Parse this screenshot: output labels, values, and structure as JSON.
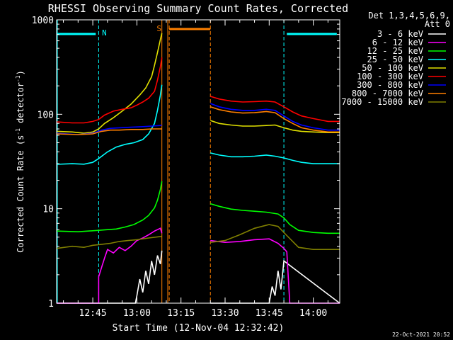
{
  "chart_data": {
    "type": "line",
    "title": "RHESSI Observing Summary Count Rates, Corrected",
    "xlabel": "Start Time (12-Nov-04 12:32:42)",
    "ylabel": "Corrected Count Rate (s⁻¹ detector⁻¹)",
    "ylabel_main": "Corrected Count Rate (s",
    "ylabel_sup1": "-1",
    "ylabel_mid": " detector",
    "ylabel_sup2": "-1",
    "ylabel_end": ")",
    "y_scale": "log",
    "ylim": [
      1,
      1000
    ],
    "xlim": [
      "12:32:42",
      "14:09:00"
    ],
    "x_ticks": [
      "12:45",
      "13:00",
      "13:15",
      "13:30",
      "13:45",
      "14:00"
    ],
    "y_ticks": [
      "1",
      "10",
      "100",
      "1000"
    ],
    "legend_header": [
      "Det 1,3,4,5,6,9,",
      "Att 0"
    ],
    "legend_placement": "right",
    "series": [
      {
        "name": "3 - 6 keV",
        "color": "#ffffff",
        "segments": [
          [
            [
              "12:32:42",
              1
            ],
            [
              "12:59:30",
              1
            ],
            [
              "13:00",
              1.2
            ],
            [
              "13:01",
              1.8
            ],
            [
              "13:02",
              1.3
            ],
            [
              "13:03",
              2.2
            ],
            [
              "13:04",
              1.6
            ],
            [
              "13:05",
              2.8
            ],
            [
              "13:06",
              2.0
            ],
            [
              "13:07",
              3.2
            ],
            [
              "13:08",
              2.6
            ],
            [
              "13:08:30",
              3.6
            ]
          ],
          [
            [
              "13:25",
              1
            ],
            [
              "13:45",
              1
            ],
            [
              "13:46",
              1.5
            ],
            [
              "13:47",
              1.2
            ],
            [
              "13:48",
              2.2
            ],
            [
              "13:49",
              1.4
            ],
            [
              "13:50",
              2.8
            ],
            [
              "14:09",
              1
            ]
          ]
        ]
      },
      {
        "name": "6 - 12 keV",
        "color": "#ff00ff",
        "segments": [
          [
            [
              "12:32:42",
              1
            ],
            [
              "12:47",
              1
            ],
            [
              "12:47",
              1.9
            ],
            [
              "12:48",
              2.4
            ],
            [
              "12:49",
              3.0
            ],
            [
              "12:50",
              3.7
            ],
            [
              "12:52",
              3.4
            ],
            [
              "12:54",
              3.9
            ],
            [
              "12:56",
              3.6
            ],
            [
              "12:58",
              4.0
            ],
            [
              "13:00",
              4.6
            ],
            [
              "13:02",
              4.9
            ],
            [
              "13:04",
              5.3
            ],
            [
              "13:06",
              5.8
            ],
            [
              "13:08",
              6.2
            ],
            [
              "13:08:30",
              5.5
            ]
          ],
          [
            [
              "13:25",
              4.6
            ],
            [
              "13:30",
              4.4
            ],
            [
              "13:35",
              4.5
            ],
            [
              "13:40",
              4.7
            ],
            [
              "13:45",
              4.8
            ],
            [
              "13:48",
              4.3
            ],
            [
              "13:50",
              3.8
            ],
            [
              "13:51",
              3.5
            ],
            [
              "13:52",
              1
            ],
            [
              "14:09",
              1
            ]
          ]
        ]
      },
      {
        "name": "12 - 25 keV",
        "color": "#00ff00",
        "segments": [
          [
            [
              "12:32:42",
              5.8
            ],
            [
              "12:40",
              5.7
            ],
            [
              "12:47",
              5.9
            ],
            [
              "12:50",
              6.0
            ],
            [
              "12:53",
              6.1
            ],
            [
              "12:56",
              6.4
            ],
            [
              "12:59",
              6.8
            ],
            [
              "13:02",
              7.6
            ],
            [
              "13:04",
              8.5
            ],
            [
              "13:06",
              10.2
            ],
            [
              "13:07",
              12.3
            ],
            [
              "13:08",
              16.0
            ],
            [
              "13:08:30",
              19.5
            ]
          ],
          [
            [
              "13:25",
              11.3
            ],
            [
              "13:28",
              10.6
            ],
            [
              "13:32",
              9.9
            ],
            [
              "13:36",
              9.6
            ],
            [
              "13:40",
              9.4
            ],
            [
              "13:44",
              9.2
            ],
            [
              "13:48",
              8.8
            ],
            [
              "13:50",
              8.0
            ],
            [
              "13:52",
              6.8
            ],
            [
              "13:55",
              5.9
            ],
            [
              "14:00",
              5.6
            ],
            [
              "14:05",
              5.5
            ],
            [
              "14:09",
              5.5
            ]
          ]
        ]
      },
      {
        "name": "25 - 50 keV",
        "color": "#00ffff",
        "segments": [
          [
            [
              "12:32:42",
              29.5
            ],
            [
              "12:38",
              30
            ],
            [
              "12:42",
              29.6
            ],
            [
              "12:45",
              31
            ],
            [
              "12:47",
              34
            ],
            [
              "12:50",
              40
            ],
            [
              "12:53",
              45
            ],
            [
              "12:56",
              48
            ],
            [
              "12:59",
              50
            ],
            [
              "13:02",
              54
            ],
            [
              "13:04",
              62
            ],
            [
              "13:06",
              80
            ],
            [
              "13:07",
              110
            ],
            [
              "13:08",
              160
            ],
            [
              "13:08:30",
              205
            ]
          ],
          [
            [
              "13:25",
              39
            ],
            [
              "13:28",
              37
            ],
            [
              "13:32",
              35.5
            ],
            [
              "13:36",
              35.5
            ],
            [
              "13:40",
              36
            ],
            [
              "13:44",
              37
            ],
            [
              "13:47",
              36
            ],
            [
              "13:50",
              34.5
            ],
            [
              "13:53",
              32.5
            ],
            [
              "13:56",
              31
            ],
            [
              "14:00",
              30
            ],
            [
              "14:05",
              30
            ],
            [
              "14:09",
              30
            ]
          ]
        ]
      },
      {
        "name": "50 - 100 keV",
        "color": "#e0e000",
        "segments": [
          [
            [
              "12:32:42",
              66
            ],
            [
              "12:38",
              65
            ],
            [
              "12:42",
              63
            ],
            [
              "12:45",
              65
            ],
            [
              "12:47",
              70
            ],
            [
              "12:49",
              80
            ],
            [
              "12:52",
              92
            ],
            [
              "12:55",
              108
            ],
            [
              "12:58",
              128
            ],
            [
              "13:01",
              160
            ],
            [
              "13:03",
              190
            ],
            [
              "13:05",
              250
            ],
            [
              "13:06",
              330
            ],
            [
              "13:07",
              450
            ],
            [
              "13:08",
              620
            ],
            [
              "13:08:30",
              720
            ]
          ],
          [
            [
              "13:25",
              86
            ],
            [
              "13:28",
              80
            ],
            [
              "13:32",
              77
            ],
            [
              "13:36",
              75
            ],
            [
              "13:40",
              75
            ],
            [
              "13:44",
              76
            ],
            [
              "13:47",
              77
            ],
            [
              "13:50",
              72
            ],
            [
              "13:53",
              68
            ],
            [
              "13:56",
              66
            ],
            [
              "14:00",
              65
            ],
            [
              "14:05",
              64
            ],
            [
              "14:09",
              64
            ]
          ]
        ]
      },
      {
        "name": "100 - 300 keV",
        "color": "#ff0000",
        "segments": [
          [
            [
              "12:32:42",
              83
            ],
            [
              "12:38",
              81
            ],
            [
              "12:42",
              81
            ],
            [
              "12:45",
              84
            ],
            [
              "12:47",
              88
            ],
            [
              "12:49",
              98
            ],
            [
              "12:52",
              108
            ],
            [
              "12:55",
              113
            ],
            [
              "12:58",
              117
            ],
            [
              "13:00",
              125
            ],
            [
              "13:02",
              135
            ],
            [
              "13:04",
              148
            ],
            [
              "13:06",
              175
            ],
            [
              "13:07",
              230
            ],
            [
              "13:08",
              320
            ],
            [
              "13:08:30",
              400
            ]
          ],
          [
            [
              "13:25",
              155
            ],
            [
              "13:28",
              145
            ],
            [
              "13:32",
              138
            ],
            [
              "13:36",
              135
            ],
            [
              "13:40",
              136
            ],
            [
              "13:44",
              138
            ],
            [
              "13:47",
              135
            ],
            [
              "13:50",
              120
            ],
            [
              "13:53",
              106
            ],
            [
              "13:56",
              96
            ],
            [
              "14:00",
              90
            ],
            [
              "14:05",
              84
            ],
            [
              "14:09",
              84
            ]
          ]
        ]
      },
      {
        "name": "300 - 800 keV",
        "color": "#0000ff",
        "segments": [
          [
            [
              "12:32:42",
              63
            ],
            [
              "12:40",
              61
            ],
            [
              "12:45",
              63
            ],
            [
              "12:48",
              68
            ],
            [
              "12:51",
              71
            ],
            [
              "12:54",
              72
            ],
            [
              "12:58",
              73
            ],
            [
              "13:02",
              74
            ],
            [
              "13:05",
              75
            ],
            [
              "13:08",
              76
            ],
            [
              "13:08:30",
              77
            ]
          ],
          [
            [
              "13:25",
              130
            ],
            [
              "13:28",
              120
            ],
            [
              "13:32",
              113
            ],
            [
              "13:36",
              110
            ],
            [
              "13:40",
              110
            ],
            [
              "13:44",
              113
            ],
            [
              "13:47",
              110
            ],
            [
              "13:50",
              96
            ],
            [
              "13:53",
              84
            ],
            [
              "13:56",
              77
            ],
            [
              "14:00",
              72
            ],
            [
              "14:05",
              68
            ],
            [
              "14:09",
              68
            ]
          ]
        ]
      },
      {
        "name": "800 - 7000 keV",
        "color": "#ff8000",
        "segments": [
          [
            [
              "12:32:42",
              62
            ],
            [
              "12:40",
              61
            ],
            [
              "12:45",
              62
            ],
            [
              "12:48",
              66
            ],
            [
              "12:51",
              68
            ],
            [
              "12:54",
              68
            ],
            [
              "12:58",
              69
            ],
            [
              "13:02",
              69
            ],
            [
              "13:05",
              70
            ],
            [
              "13:08",
              70
            ],
            [
              "13:08:30",
              70
            ]
          ],
          [
            [
              "13:25",
              120
            ],
            [
              "13:28",
              112
            ],
            [
              "13:32",
              106
            ],
            [
              "13:36",
              103
            ],
            [
              "13:40",
              104
            ],
            [
              "13:44",
              107
            ],
            [
              "13:47",
              104
            ],
            [
              "13:50",
              90
            ],
            [
              "13:53",
              80
            ],
            [
              "13:56",
              72
            ],
            [
              "14:00",
              68
            ],
            [
              "14:05",
              65
            ],
            [
              "14:09",
              65
            ]
          ]
        ]
      },
      {
        "name": "7000 - 15000 keV",
        "color": "#808000",
        "segments": [
          [
            [
              "12:32:42",
              3.8
            ],
            [
              "12:38",
              4.0
            ],
            [
              "12:42",
              3.9
            ],
            [
              "12:45",
              4.1
            ],
            [
              "12:48",
              4.2
            ],
            [
              "12:51",
              4.3
            ],
            [
              "12:54",
              4.5
            ],
            [
              "12:57",
              4.6
            ],
            [
              "13:00",
              4.7
            ],
            [
              "13:04",
              4.9
            ],
            [
              "13:08:30",
              5.1
            ]
          ],
          [
            [
              "13:25",
              4.4
            ],
            [
              "13:30",
              4.6
            ],
            [
              "13:35",
              5.3
            ],
            [
              "13:40",
              6.2
            ],
            [
              "13:45",
              6.8
            ],
            [
              "13:48",
              6.5
            ],
            [
              "13:51",
              5.2
            ],
            [
              "13:55",
              3.9
            ],
            [
              "14:00",
              3.7
            ],
            [
              "14:05",
              3.7
            ],
            [
              "14:09",
              3.7
            ]
          ]
        ]
      }
    ],
    "annotations": {
      "night_label": "N",
      "saa_label": "S",
      "night_lines": [
        "12:47",
        "13:50"
      ],
      "night_bars": [
        [
          "12:32:42",
          "12:46"
        ],
        [
          "13:51",
          "14:08"
        ]
      ],
      "saa_lines": [
        "13:11",
        "13:25"
      ],
      "attenuator_lines": [
        "13:08:30",
        "13:10:30"
      ],
      "saa_bar": [
        "13:11",
        "13:25"
      ]
    },
    "colors": {
      "night": "#00ffff",
      "saa": "#ff8000",
      "background": "#000000",
      "axes": "#ffffff"
    }
  },
  "footer": {
    "timestamp": "22-Oct-2021 20:52"
  }
}
